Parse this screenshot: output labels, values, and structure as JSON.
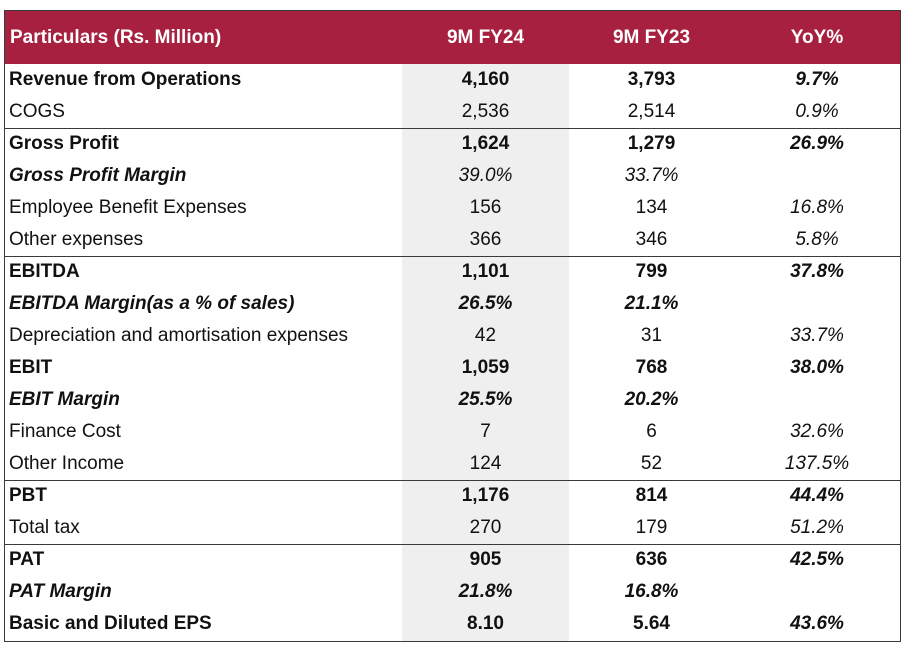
{
  "header": {
    "particulars": "Particulars (Rs. Million)",
    "col1": "9M FY24",
    "col2": "9M FY23",
    "col3": "YoY%"
  },
  "rows": [
    {
      "label": "Revenue from Operations",
      "v1": "4,160",
      "v2": "3,793",
      "v3": "9.7%"
    },
    {
      "label": "COGS",
      "v1": "2,536",
      "v2": "2,514",
      "v3": "0.9%"
    },
    {
      "label": "Gross Profit",
      "v1": "1,624",
      "v2": "1,279",
      "v3": "26.9%"
    },
    {
      "label": "Gross Profit Margin",
      "v1": "39.0%",
      "v2": "33.7%",
      "v3": ""
    },
    {
      "label": "Employee Benefit Expenses",
      "v1": "156",
      "v2": "134",
      "v3": "16.8%"
    },
    {
      "label": "Other expenses",
      "v1": "366",
      "v2": "346",
      "v3": "5.8%"
    },
    {
      "label": "EBITDA",
      "v1": "1,101",
      "v2": "799",
      "v3": "37.8%"
    },
    {
      "label": "EBITDA Margin(as a % of sales)",
      "v1": "26.5%",
      "v2": "21.1%",
      "v3": ""
    },
    {
      "label": "Depreciation and amortisation expenses",
      "v1": "42",
      "v2": "31",
      "v3": "33.7%"
    },
    {
      "label": "EBIT",
      "v1": "1,059",
      "v2": "768",
      "v3": "38.0%"
    },
    {
      "label": "EBIT Margin",
      "v1": "25.5%",
      "v2": "20.2%",
      "v3": ""
    },
    {
      "label": "Finance Cost",
      "v1": "7",
      "v2": "6",
      "v3": "32.6%"
    },
    {
      "label": "Other Income",
      "v1": "124",
      "v2": "52",
      "v3": "137.5%"
    },
    {
      "label": "PBT",
      "v1": "1,176",
      "v2": "814",
      "v3": "44.4%"
    },
    {
      "label": "Total tax",
      "v1": "270",
      "v2": "179",
      "v3": "51.2%"
    },
    {
      "label": "PAT",
      "v1": "905",
      "v2": "636",
      "v3": "42.5%"
    },
    {
      "label": "PAT Margin",
      "v1": "21.8%",
      "v2": "16.8%",
      "v3": ""
    },
    {
      "label": "Basic and Diluted EPS",
      "v1": "8.10",
      "v2": "5.64",
      "v3": "43.6%"
    }
  ]
}
